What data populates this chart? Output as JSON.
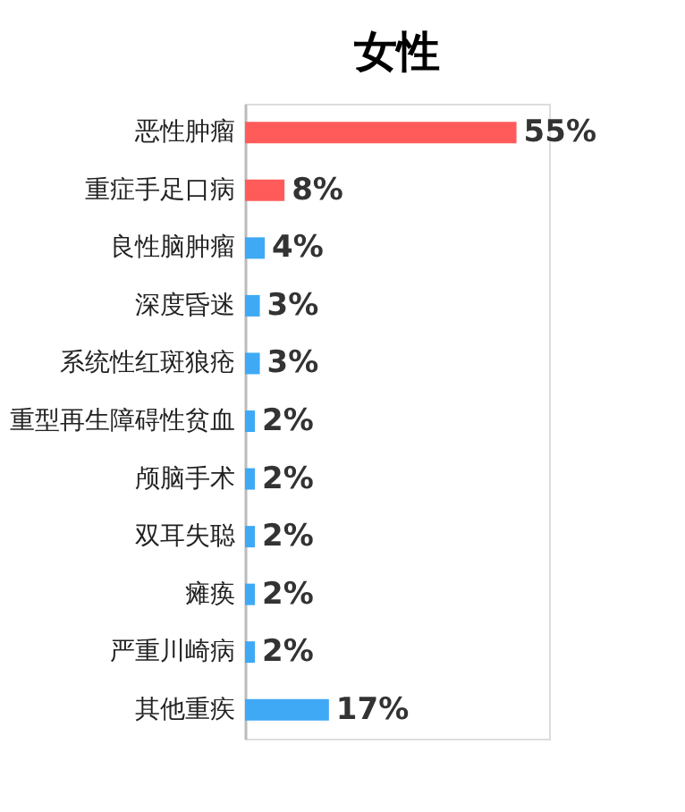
{
  "chart_data": {
    "type": "bar",
    "orientation": "horizontal",
    "title": "女性",
    "categories": [
      "恶性肿瘤",
      "重症手足口病",
      "良性脑肿瘤",
      "深度昏迷",
      "系统性红斑狼疮",
      "重型再生障碍性贫血",
      "颅脑手术",
      "双耳失聪",
      "瘫痪",
      "严重川崎病",
      "其他重疾"
    ],
    "values": [
      55,
      8,
      4,
      3,
      3,
      2,
      2,
      2,
      2,
      2,
      17
    ],
    "value_labels": [
      "55%",
      "8%",
      "4%",
      "3%",
      "3%",
      "2%",
      "2%",
      "2%",
      "2%",
      "2%",
      "17%"
    ],
    "colors": [
      "#ff5b5b",
      "#ff5b5b",
      "#3fa9f5",
      "#3fa9f5",
      "#3fa9f5",
      "#3fa9f5",
      "#3fa9f5",
      "#3fa9f5",
      "#3fa9f5",
      "#3fa9f5",
      "#3fa9f5"
    ]
  }
}
